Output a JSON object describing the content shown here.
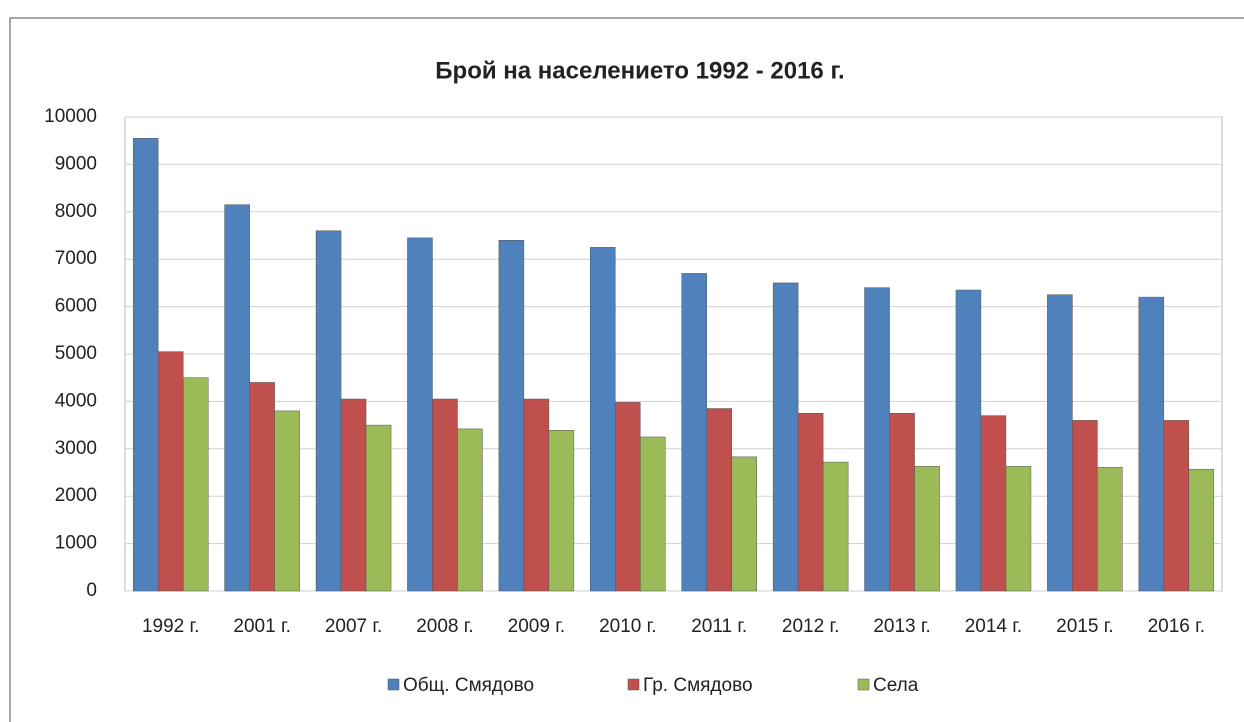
{
  "chart_data": {
    "type": "bar",
    "title": "Брой на населението 1992 - 2016 г.",
    "categories": [
      "1992 г.",
      "2001 г.",
      "2007 г.",
      "2008 г.",
      "2009 г.",
      "2010 г.",
      "2011 г.",
      "2012 г.",
      "2013 г.",
      "2014 г.",
      "2015 г.",
      "2016 г."
    ],
    "series": [
      {
        "name": "Общ. Смядово",
        "color": "#4f81bd",
        "values": [
          9550,
          8150,
          7600,
          7450,
          7400,
          7250,
          6700,
          6500,
          6400,
          6350,
          6250,
          6200
        ]
      },
      {
        "name": "Гр. Смядово",
        "color": "#c0504d",
        "values": [
          5050,
          4400,
          4050,
          4050,
          4050,
          3980,
          3850,
          3750,
          3750,
          3700,
          3600,
          3600
        ]
      },
      {
        "name": "Села",
        "color": "#9bbb59",
        "values": [
          4500,
          3800,
          3500,
          3420,
          3390,
          3250,
          2830,
          2720,
          2630,
          2630,
          2610,
          2570
        ]
      }
    ],
    "ylim": [
      0,
      10000
    ],
    "yticks": [
      0,
      1000,
      2000,
      3000,
      4000,
      5000,
      6000,
      7000,
      8000,
      9000,
      10000
    ],
    "grid": true,
    "legend": "bottom"
  }
}
